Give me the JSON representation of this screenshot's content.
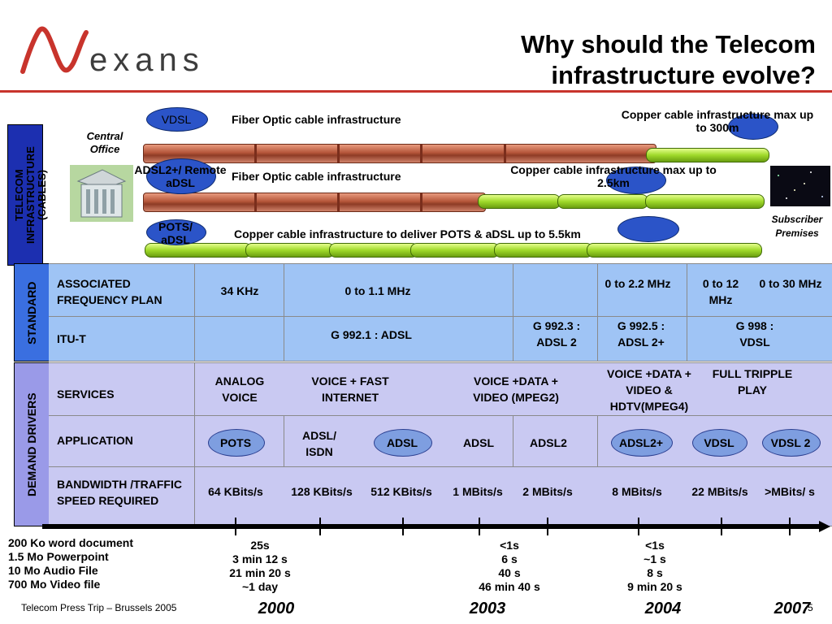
{
  "header": {
    "logo_text": "exans",
    "title_line1": "Why should the Telecom",
    "title_line2": "infrastructure evolve?"
  },
  "cables": {
    "vdsl_tag": "VDSL",
    "fiber1": "Fiber Optic cable infrastructure",
    "copper1": "Copper cable infrastructure max up to 300m",
    "adsl2_tag": "ADSL2+/ Remote aDSL",
    "fiber2": "Fiber Optic cable infrastructure",
    "copper2": "Copper cable infrastructure max up to 2.5km",
    "pots_tag": "POTS/ aDSL",
    "copper3": "Copper cable infrastructure to deliver POTS & aDSL up to 5.5km",
    "central_office": "Central Office",
    "subscriber": "Subscriber Premises",
    "side_label": "TELECOM INFRASTRUCTURE (CABLES)"
  },
  "standard": {
    "side_label": "STANDARD",
    "row1_label": "ASSOCIATED FREQUENCY PLAN",
    "row1": [
      "34 KHz",
      "0 to 1.1 MHz",
      "0 to 2.2 MHz",
      "0 to 12 MHz",
      "0 to 30 MHz"
    ],
    "row2_label": "ITU-T",
    "row2": [
      "G 992.1 : ADSL",
      "G 992.3 : ADSL 2",
      "G 992.5 : ADSL 2+",
      "G 998 : VDSL"
    ]
  },
  "demand": {
    "side_label": "DEMAND DRIVERS",
    "services_label": "SERVICES",
    "services": [
      "ANALOG VOICE",
      "VOICE + FAST INTERNET",
      "VOICE +DATA + VIDEO (MPEG2)",
      "VOICE +DATA + VIDEO & HDTV(MPEG4)",
      "FULL TRIPPLE PLAY"
    ],
    "application_label": "APPLICATION",
    "applications": [
      "POTS",
      "ADSL/ ISDN",
      "ADSL",
      "ADSL",
      "ADSL2",
      "ADSL2+",
      "VDSL",
      "VDSL 2"
    ],
    "bandwidth_label": "BANDWIDTH /TRAFFIC SPEED REQUIRED",
    "bandwidths": [
      "64 KBits/s",
      "128 KBits/s",
      "512 KBits/s",
      "1 MBits/s",
      "2 MBits/s",
      "8 MBits/s",
      "22 MBits/s",
      ">MBits/ s"
    ]
  },
  "timeline": {
    "files": [
      "200 Ko word document",
      "1.5 Mo Powerpoint",
      "10 Mo Audio File",
      "700 Mo Video file"
    ],
    "col_2000": [
      "25s",
      "3 min 12 s",
      "21 min 20 s",
      "~1 day"
    ],
    "col_2003": [
      "<1s",
      "6 s",
      "40 s",
      "46 min 40 s"
    ],
    "col_2004": [
      "<1s",
      "~1 s",
      "8 s",
      "9 min 20 s"
    ],
    "years": [
      "2000",
      "2003",
      "2004",
      "2007"
    ]
  },
  "footer": {
    "left": "Telecom Press Trip – Brussels 2005",
    "page": "5"
  },
  "colors": {
    "accent_red": "#c8342c",
    "standard_bg": "#9fc4f5",
    "demand_bg": "#c9c9f2",
    "oval_blue": "#2b54c8",
    "side_bar": "#1c2fb0",
    "standard_side": "#3a6fe0",
    "demand_side": "#9a9ae8"
  }
}
